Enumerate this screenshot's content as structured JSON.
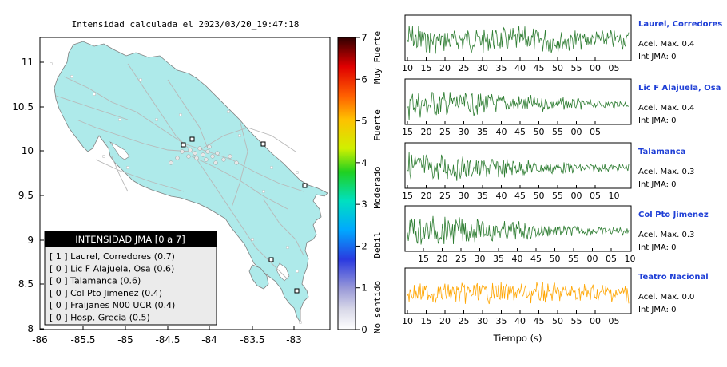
{
  "map": {
    "title": "Intensidad calculada el 2023/03/20_19:47:18",
    "x_ticks": [
      "-86",
      "-85.5",
      "-85",
      "-84.5",
      "-84",
      "-83.5",
      "-83"
    ],
    "y_ticks": [
      "11",
      "10.5",
      "10",
      "9.5",
      "9",
      "8.5",
      "8"
    ],
    "land_color": "#aeeaea",
    "road_color": "#bdbdbd",
    "legend": {
      "title": "INTENSIDAD JMA [0 a 7]",
      "rows": [
        "[ 1 ]  Laurel, Corredores (0.7)",
        "[ 0 ]  Lic F Alajuela, Osa (0.6)",
        "[ 0 ]  Talamanca (0.6)",
        "[ 0 ]  Col Pto Jimenez (0.4)",
        "[ 0 ]  Fraijanes N00 UCR (0.4)",
        "[ 0 ]  Hosp. Grecia (0.5)"
      ]
    }
  },
  "colorbar": {
    "ticks": [
      "0",
      "1",
      "2",
      "3",
      "4",
      "5",
      "6",
      "7"
    ],
    "class_labels": [
      "No sentido",
      "Debil",
      "Moderado",
      "Fuerte",
      "Muy Fuerte"
    ]
  },
  "seismograms": {
    "xlabel": "Tiempo (s)",
    "line_color": "#2e7d32",
    "highlight_color": "#ffa500",
    "station_color": "#1f3fd6",
    "panels": [
      {
        "station": "Laurel, Corredores",
        "accel": "Acel. Max. 0.4",
        "jma": "Int JMA: 0",
        "ticks": [
          "10",
          "15",
          "20",
          "25",
          "30",
          "35",
          "40",
          "45",
          "50",
          "55",
          "00",
          "05"
        ],
        "color": "green"
      },
      {
        "station": "Lic F Alajuela, Osa",
        "accel": "Acel. Max. 0.4",
        "jma": "Int JMA: 0",
        "ticks": [
          "15",
          "20",
          "25",
          "30",
          "35",
          "40",
          "45",
          "50",
          "55",
          "00",
          "05"
        ],
        "color": "green"
      },
      {
        "station": "Talamanca",
        "accel": "Acel. Max. 0.3",
        "jma": "Int JMA: 0",
        "ticks": [
          "15",
          "20",
          "25",
          "30",
          "35",
          "40",
          "45",
          "50",
          "55",
          "00",
          "05",
          "10"
        ],
        "color": "green"
      },
      {
        "station": "Col Pto Jimenez",
        "accel": "Acel. Max. 0.3",
        "jma": "Int JMA: 0",
        "ticks": [
          "15",
          "20",
          "25",
          "30",
          "35",
          "40",
          "45",
          "50",
          "55",
          "00",
          "05",
          "10"
        ],
        "color": "green"
      },
      {
        "station": "Teatro Nacional",
        "accel": "Acel. Max. 0.0",
        "jma": "Int JMA: 0",
        "ticks": [
          "10",
          "15",
          "20",
          "25",
          "30",
          "35",
          "40",
          "45",
          "50",
          "55",
          "00",
          "05"
        ],
        "color": "orange"
      }
    ]
  },
  "chart_data": [
    {
      "type": "scatter",
      "title": "Intensidad calculada el 2023/03/20_19:47:18",
      "xlim": [
        -86,
        -82.5
      ],
      "ylim": [
        8,
        11.3
      ],
      "x_ticks": [
        -86,
        -85.5,
        -85,
        -84.5,
        -84,
        -83.5,
        -83
      ],
      "y_ticks": [
        11,
        10.5,
        10,
        9.5,
        9,
        8.5,
        8
      ],
      "colorbar_range": [
        0,
        7
      ],
      "colorbar_classes": [
        "No sentido",
        "Debil",
        "Moderado",
        "Fuerte",
        "Muy Fuerte"
      ],
      "legend_title": "INTENSIDAD JMA [0 a 7]",
      "stations": [
        {
          "name": "Laurel, Corredores",
          "intensity_class": 1,
          "value": 0.7
        },
        {
          "name": "Lic F Alajuela, Osa",
          "intensity_class": 0,
          "value": 0.6
        },
        {
          "name": "Talamanca",
          "intensity_class": 0,
          "value": 0.6
        },
        {
          "name": "Col Pto Jimenez",
          "intensity_class": 0,
          "value": 0.4
        },
        {
          "name": "Fraijanes N00 UCR",
          "intensity_class": 0,
          "value": 0.4
        },
        {
          "name": "Hosp. Grecia",
          "intensity_class": 0,
          "value": 0.5
        }
      ]
    },
    {
      "type": "line",
      "xlabel": "Tiempo (s)",
      "series": [
        {
          "name": "Laurel, Corredores",
          "acel_max": 0.4,
          "int_jma": 0
        },
        {
          "name": "Lic F Alajuela, Osa",
          "acel_max": 0.4,
          "int_jma": 0
        },
        {
          "name": "Talamanca",
          "acel_max": 0.3,
          "int_jma": 0
        },
        {
          "name": "Col Pto Jimenez",
          "acel_max": 0.3,
          "int_jma": 0
        },
        {
          "name": "Teatro Nacional",
          "acel_max": 0.0,
          "int_jma": 0
        }
      ]
    }
  ]
}
